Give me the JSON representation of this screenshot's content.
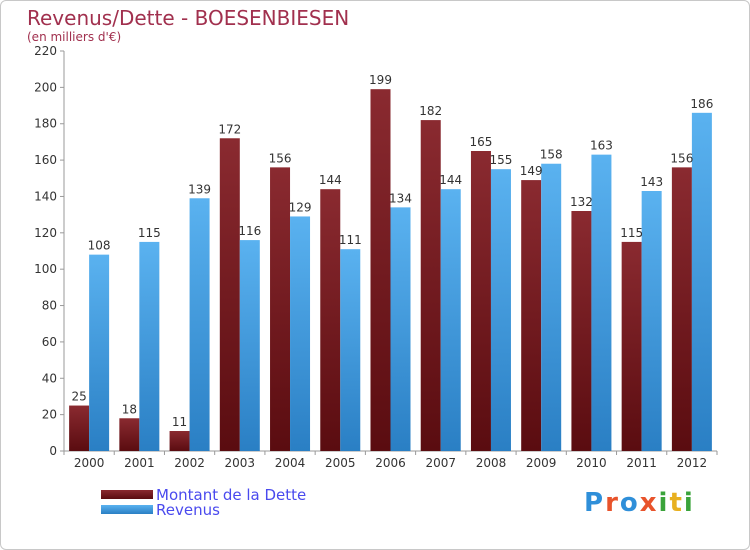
{
  "chart_data": {
    "type": "bar",
    "title": "Revenus/Dette - BOESENBIESEN",
    "subtitle": "(en milliers d'€)",
    "categories": [
      "2000",
      "2001",
      "2002",
      "2003",
      "2004",
      "2005",
      "2006",
      "2007",
      "2008",
      "2009",
      "2010",
      "2011",
      "2012"
    ],
    "series": [
      {
        "name": "Montant de la Dette",
        "color": "#7a1a1f",
        "values": [
          25,
          18,
          11,
          172,
          156,
          144,
          199,
          182,
          165,
          149,
          132,
          115,
          156
        ]
      },
      {
        "name": "Revenus",
        "color": "#4aa3e6",
        "values": [
          108,
          115,
          139,
          116,
          129,
          111,
          134,
          144,
          155,
          158,
          163,
          143,
          186
        ]
      }
    ],
    "ylim": [
      0,
      220
    ],
    "yticks": [
      0,
      20,
      40,
      60,
      80,
      100,
      120,
      140,
      160,
      180,
      200,
      220
    ],
    "grid": false,
    "legend_position": "bottom-left"
  },
  "logo": {
    "text": "Proxiti",
    "colors": [
      "#2f8fd9",
      "#e8532b",
      "#2f8fd9",
      "#e8532b",
      "#3aa33a",
      "#e8b020",
      "#3aa33a"
    ]
  }
}
